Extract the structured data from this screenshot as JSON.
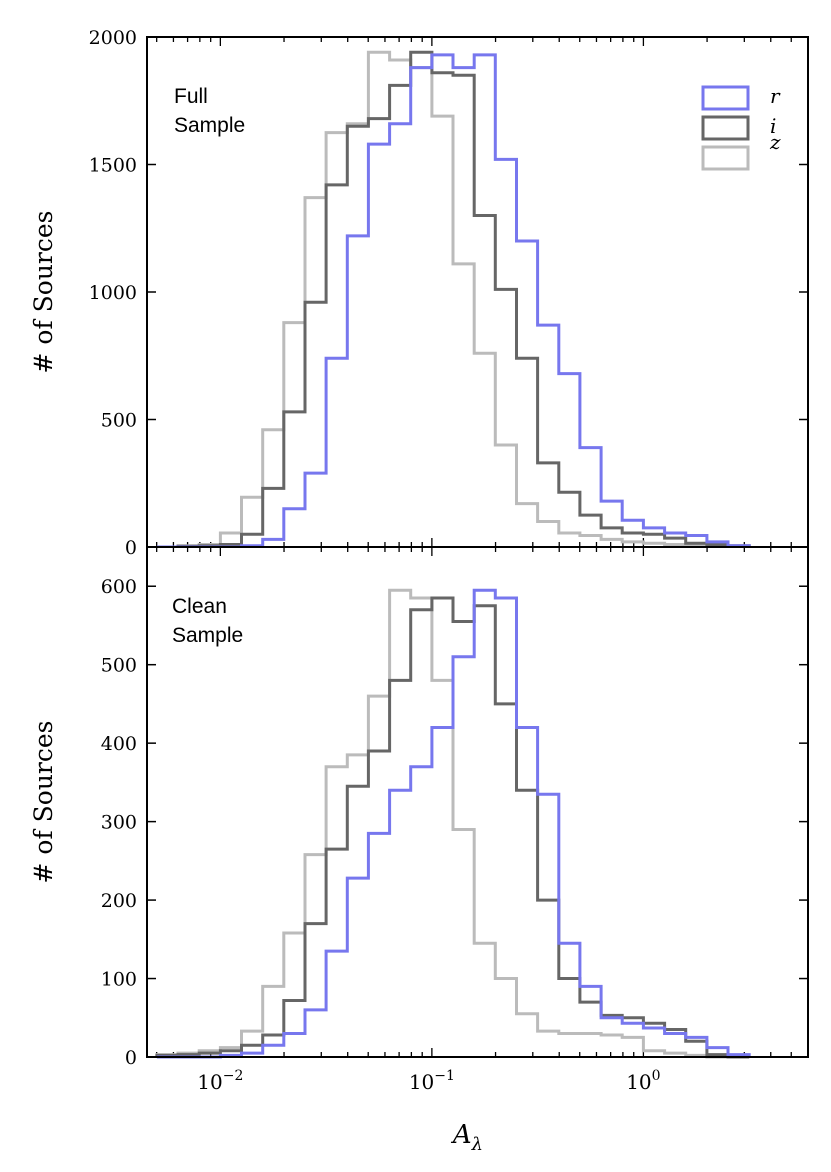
{
  "chart_data": {
    "type": "histogram",
    "xlabel_base": "A",
    "xlabel_sub": "λ",
    "xscale": "log",
    "xlim": [
      0.0045,
      6.0
    ],
    "x_tick_labels": [
      {
        "value": 0.01,
        "base": "10",
        "exp": "−2"
      },
      {
        "value": 0.1,
        "base": "10",
        "exp": "−1"
      },
      {
        "value": 1,
        "base": "10",
        "exp": "0"
      }
    ],
    "bin_edges_log10": [
      -2.3,
      -2.2,
      -2.1,
      -2.0,
      -1.9,
      -1.8,
      -1.7,
      -1.6,
      -1.5,
      -1.4,
      -1.3,
      -1.2,
      -1.1,
      -1.0,
      -0.9,
      -0.8,
      -0.7,
      -0.6,
      -0.5,
      -0.4,
      -0.3,
      -0.2,
      -0.1,
      0.0,
      0.1,
      0.2,
      0.3,
      0.4,
      0.5
    ],
    "legend": {
      "position": "top-right",
      "entries": [
        {
          "label": "r",
          "color": "#7777ee"
        },
        {
          "label": "i",
          "color": "#666666"
        },
        {
          "label": "z",
          "color": "#bbbbbb"
        }
      ]
    },
    "panels": [
      {
        "name": "full",
        "annotation_line1": "Full",
        "annotation_line2": "Sample",
        "ylabel": "# of Sources",
        "ylim": [
          0,
          2000
        ],
        "yticks": [
          "0",
          "500",
          "1000",
          "1500",
          "2000"
        ],
        "series": [
          {
            "name": "z",
            "color": "#bbbbbb",
            "values": [
              0,
              5,
              10,
              55,
              195,
              460,
              880,
              1370,
              1625,
              1660,
              1940,
              1910,
              1880,
              1690,
              1110,
              760,
              400,
              170,
              100,
              55,
              45,
              30,
              20,
              15,
              10,
              8,
              3,
              2
            ]
          },
          {
            "name": "i",
            "color": "#666666",
            "values": [
              0,
              3,
              5,
              10,
              50,
              230,
              530,
              960,
              1420,
              1650,
              1680,
              1810,
              1940,
              1860,
              1850,
              1300,
              1010,
              740,
              330,
              215,
              125,
              75,
              55,
              50,
              35,
              15,
              10,
              5
            ]
          },
          {
            "name": "r",
            "color": "#7777ee",
            "values": [
              0,
              0,
              0,
              0,
              5,
              30,
              150,
              290,
              740,
              1220,
              1580,
              1660,
              1880,
              1930,
              1880,
              1930,
              1520,
              1200,
              870,
              680,
              390,
              180,
              105,
              75,
              55,
              45,
              20,
              5
            ]
          }
        ]
      },
      {
        "name": "clean",
        "annotation_line1": "Clean",
        "annotation_line2": "Sample",
        "ylabel": "# of Sources",
        "ylim": [
          0,
          650
        ],
        "yticks": [
          "0",
          "100",
          "200",
          "300",
          "400",
          "500",
          "600"
        ],
        "series": [
          {
            "name": "z",
            "color": "#bbbbbb",
            "values": [
              3,
              5,
              8,
              12,
              33,
              90,
              158,
              258,
              370,
              385,
              460,
              595,
              585,
              480,
              290,
              145,
              100,
              55,
              33,
              30,
              30,
              28,
              25,
              8,
              5,
              2,
              0,
              0
            ]
          },
          {
            "name": "i",
            "color": "#666666",
            "values": [
              2,
              3,
              5,
              8,
              15,
              28,
              72,
              170,
              265,
              345,
              390,
              480,
              570,
              585,
              555,
              575,
              450,
              340,
              200,
              100,
              70,
              53,
              50,
              43,
              35,
              20,
              3,
              0
            ]
          },
          {
            "name": "r",
            "color": "#7777ee",
            "values": [
              0,
              0,
              0,
              2,
              5,
              15,
              30,
              60,
              135,
              228,
              285,
              340,
              370,
              420,
              510,
              595,
              585,
              420,
              335,
              145,
              90,
              50,
              43,
              37,
              30,
              25,
              12,
              3
            ]
          }
        ]
      }
    ]
  }
}
